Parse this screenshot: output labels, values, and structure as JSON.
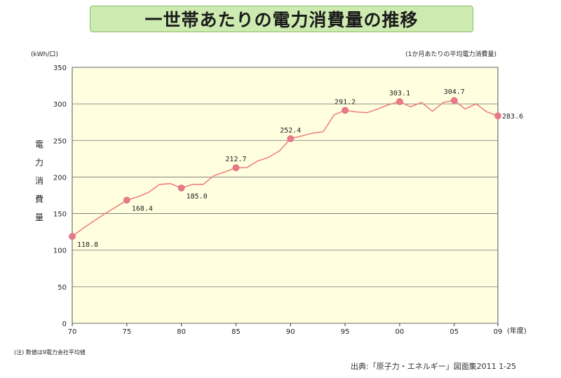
{
  "title": "一世帯あたりの電力消費量の推移",
  "footnote": "(注) 数値は9電力会社平均値",
  "source": "出典:「原子力・エネルギー」図面集2011 1-25",
  "colors": {
    "plot_bg": "#ffffe0",
    "line": "#f08080",
    "marker": "#e8788a",
    "grid": "#707070",
    "title_bg": "#cdeab0"
  },
  "chart_data": {
    "type": "line",
    "title": "",
    "unit_label": "(kWh/口)",
    "subtitle": "(1か月あたりの平均電力消費量)",
    "ylabel_chars": [
      "電",
      "力",
      "消",
      "費",
      "量"
    ],
    "xlabel": "(年度)",
    "ylim": [
      0,
      350
    ],
    "yticks": [
      "0",
      "50",
      "100",
      "150",
      "200",
      "250",
      "300",
      "350"
    ],
    "xlim": [
      1970,
      2009
    ],
    "xticks": [
      {
        "x": 1970,
        "label": "70"
      },
      {
        "x": 1975,
        "label": "75"
      },
      {
        "x": 1980,
        "label": "80"
      },
      {
        "x": 1985,
        "label": "85"
      },
      {
        "x": 1990,
        "label": "90"
      },
      {
        "x": 1995,
        "label": "95"
      },
      {
        "x": 2000,
        "label": "00"
      },
      {
        "x": 2005,
        "label": "05"
      },
      {
        "x": 2009,
        "label": "09"
      }
    ],
    "grid": true,
    "series": [
      {
        "x": [
          1970,
          1971,
          1972,
          1973,
          1974,
          1975,
          1976,
          1977,
          1978,
          1979,
          1980,
          1981,
          1982,
          1983,
          1984,
          1985,
          1986,
          1987,
          1988,
          1989,
          1990,
          1991,
          1992,
          1993,
          1994,
          1995,
          1996,
          1997,
          1998,
          1999,
          2000,
          2001,
          2002,
          2003,
          2004,
          2005,
          2006,
          2007,
          2008,
          2009
        ],
        "y": [
          118.8,
          130,
          140,
          150,
          159,
          168.4,
          173,
          179,
          190,
          191,
          185.0,
          190,
          190,
          202,
          207,
          212.7,
          213,
          222,
          227,
          236,
          252.4,
          256,
          260,
          262,
          285,
          291.2,
          289,
          288,
          293,
          299,
          303.1,
          296,
          302,
          290,
          302,
          304.7,
          293,
          300,
          289,
          283.6
        ]
      }
    ],
    "labels": [
      {
        "x": 1970,
        "y": 118.8,
        "text": "118.8",
        "pos": "below-right"
      },
      {
        "x": 1975,
        "y": 168.4,
        "text": "168.4",
        "pos": "below-right"
      },
      {
        "x": 1980,
        "y": 185.0,
        "text": "185.0",
        "pos": "below-right"
      },
      {
        "x": 1985,
        "y": 212.7,
        "text": "212.7",
        "pos": "above"
      },
      {
        "x": 1990,
        "y": 252.4,
        "text": "252.4",
        "pos": "above"
      },
      {
        "x": 1995,
        "y": 291.2,
        "text": "291.2",
        "pos": "above"
      },
      {
        "x": 2000,
        "y": 303.1,
        "text": "303.1",
        "pos": "above"
      },
      {
        "x": 2005,
        "y": 304.7,
        "text": "304.7",
        "pos": "above"
      },
      {
        "x": 2009,
        "y": 283.6,
        "text": "283.6",
        "pos": "right"
      }
    ]
  }
}
